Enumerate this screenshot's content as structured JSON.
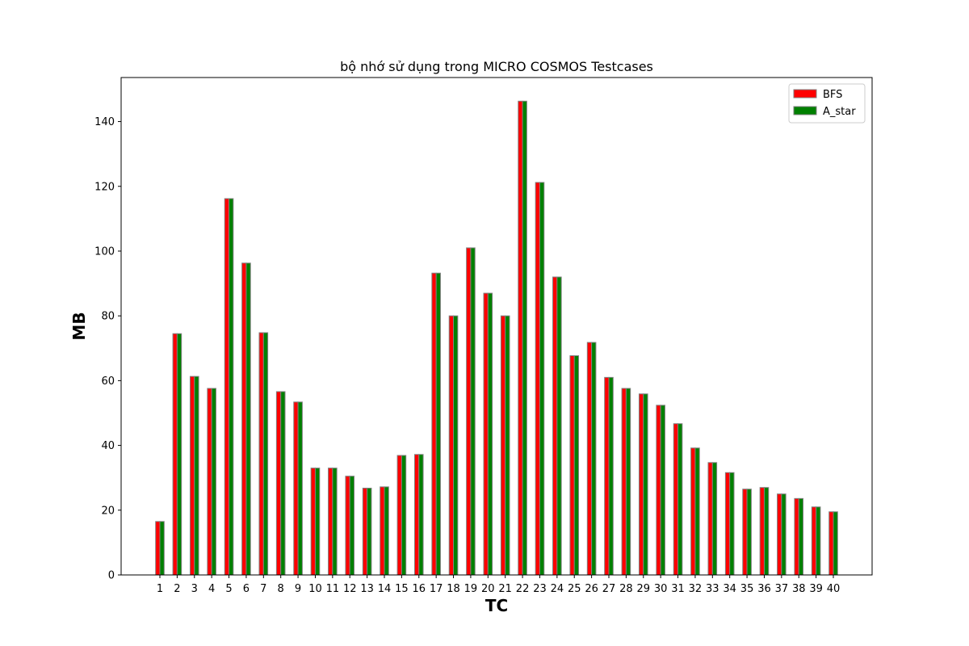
{
  "chart_data": {
    "type": "bar",
    "title": "bộ nhớ sử dụng trong MICRO COSMOS Testcases",
    "xlabel": "TC",
    "ylabel": "MB",
    "categories": [
      "1",
      "2",
      "3",
      "4",
      "5",
      "6",
      "7",
      "8",
      "9",
      "10",
      "11",
      "12",
      "13",
      "14",
      "15",
      "16",
      "17",
      "18",
      "19",
      "20",
      "21",
      "22",
      "23",
      "24",
      "25",
      "26",
      "27",
      "28",
      "29",
      "30",
      "31",
      "32",
      "33",
      "34",
      "35",
      "36",
      "37",
      "38",
      "39",
      "40"
    ],
    "series": [
      {
        "name": "BFS",
        "color": "#ff0000",
        "values": [
          16.5,
          74.5,
          61.3,
          57.6,
          116.2,
          96.3,
          74.8,
          56.6,
          53.4,
          33.0,
          33.0,
          30.5,
          26.8,
          27.2,
          36.9,
          37.2,
          93.2,
          80.0,
          101.0,
          87.0,
          80.0,
          146.3,
          121.2,
          92.0,
          67.7,
          71.8,
          61.0,
          57.6,
          55.9,
          52.4,
          46.7,
          39.2,
          34.7,
          31.6,
          26.5,
          27.0,
          25.0,
          23.6,
          21.0,
          19.5
        ]
      },
      {
        "name": "A_star",
        "color": "#008000",
        "values": [
          16.5,
          74.5,
          61.3,
          57.6,
          116.2,
          96.3,
          74.8,
          56.6,
          53.4,
          33.0,
          33.0,
          30.5,
          26.8,
          27.2,
          36.9,
          37.2,
          93.2,
          80.0,
          101.0,
          87.0,
          80.0,
          146.3,
          121.2,
          92.0,
          67.7,
          71.8,
          61.0,
          57.6,
          55.9,
          52.4,
          46.7,
          39.2,
          34.7,
          31.6,
          26.5,
          27.0,
          25.0,
          23.6,
          21.0,
          19.5
        ]
      }
    ],
    "yticks": [
      0,
      20,
      40,
      60,
      80,
      100,
      120,
      140
    ],
    "ylim": [
      0,
      153.6
    ],
    "bar_edge_color": "#808080",
    "grid": false,
    "legend_position": "top-right"
  }
}
